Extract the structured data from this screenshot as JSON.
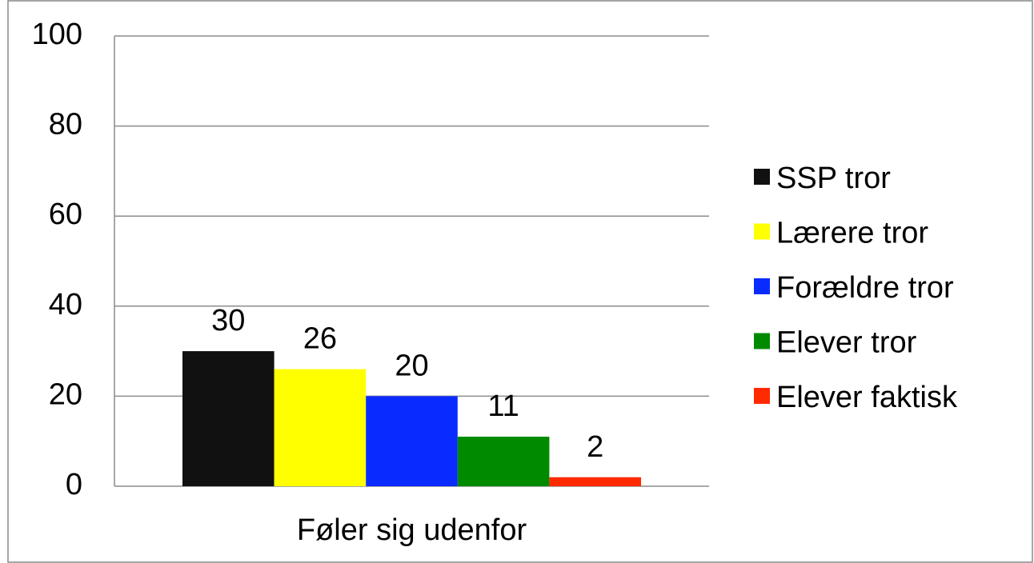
{
  "chart_data": {
    "type": "bar",
    "categories": [
      "Føler sig udenfor"
    ],
    "series": [
      {
        "name": "SSP tror",
        "color": "#111111",
        "values": [
          30
        ]
      },
      {
        "name": "Lærere tror",
        "color": "#ffff00",
        "values": [
          26
        ]
      },
      {
        "name": "Forældre tror",
        "color": "#0a2bff",
        "values": [
          20
        ]
      },
      {
        "name": "Elever tror",
        "color": "#008a00",
        "values": [
          11
        ]
      },
      {
        "name": "Elever faktisk",
        "color": "#ff2a00",
        "values": [
          2
        ]
      }
    ],
    "ylim": [
      0,
      100
    ],
    "yticks": [
      0,
      20,
      40,
      60,
      80,
      100
    ],
    "grid": true,
    "legend": "right"
  }
}
